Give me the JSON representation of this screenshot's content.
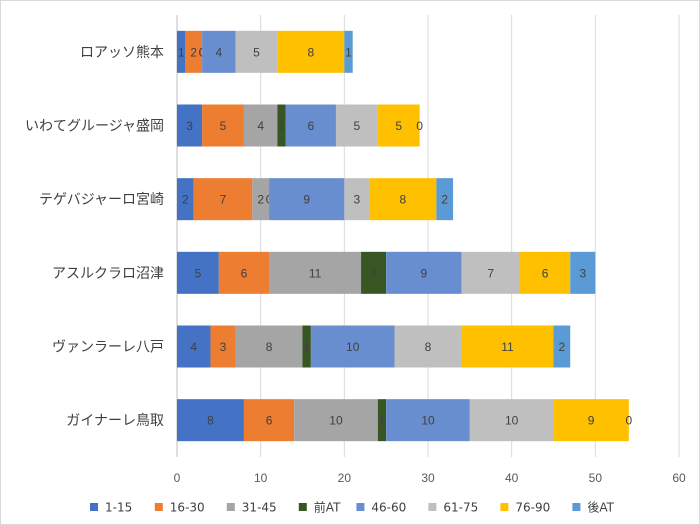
{
  "chart_data": {
    "type": "bar",
    "orientation": "horizontal",
    "stacked": true,
    "categories": [
      "ロアッソ熊本",
      "いわてグルージャ盛岡",
      "テゲバジャーロ宮崎",
      "アスルクラロ沼津",
      "ヴァンラーレ八戸",
      "ガイナーレ鳥取"
    ],
    "series": [
      {
        "name": "1-15",
        "color": "#4472C4",
        "values": [
          1,
          3,
          2,
          5,
          4,
          8
        ]
      },
      {
        "name": "16-30",
        "color": "#ED7D31",
        "values": [
          2,
          5,
          7,
          6,
          3,
          6
        ]
      },
      {
        "name": "31-45",
        "color": "#A5A5A5",
        "values": [
          0,
          4,
          2,
          11,
          8,
          10
        ]
      },
      {
        "name": "前AT",
        "color": "#375623",
        "values": [
          0,
          1,
          0,
          3,
          1,
          1
        ]
      },
      {
        "name": "46-60",
        "color": "#698ED0",
        "values": [
          4,
          6,
          9,
          9,
          10,
          10
        ]
      },
      {
        "name": "61-75",
        "color": "#BFBFBF",
        "values": [
          5,
          5,
          3,
          7,
          8,
          10
        ]
      },
      {
        "name": "76-90",
        "color": "#FFC000",
        "values": [
          8,
          5,
          8,
          6,
          11,
          9
        ]
      },
      {
        "name": "後AT",
        "color": "#5B9BD5",
        "values": [
          1,
          0,
          2,
          3,
          2,
          0
        ]
      }
    ],
    "xlim": [
      0,
      60
    ],
    "x_ticks": [
      0,
      10,
      20,
      30,
      40,
      50,
      60
    ],
    "grid": true,
    "legend_position": "bottom",
    "title": "",
    "xlabel": "",
    "ylabel": ""
  }
}
